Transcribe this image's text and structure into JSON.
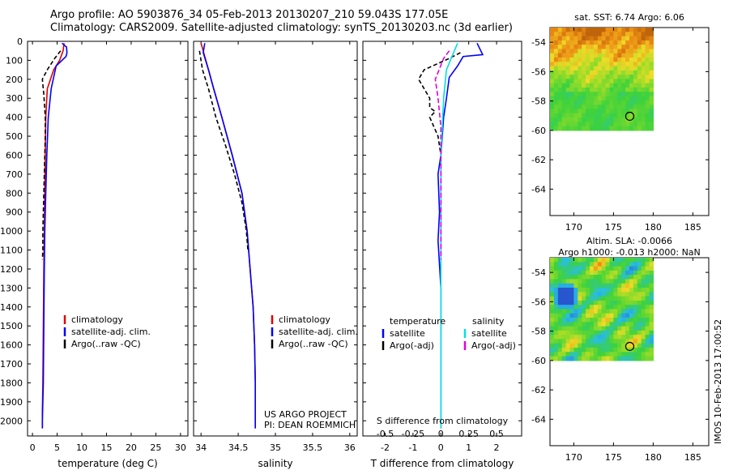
{
  "header": {
    "line1": "Argo profile: AO 5903876_34 05-Feb-2013 20130207_210 59.043S 177.05E",
    "line2": "Climatology: CARS2009. Satellite-adjusted climatology: synTS_20130203.nc (3d earlier)"
  },
  "footer_stamp": "IMOS 10-Feb-2013 17:00:52",
  "colors": {
    "climatology": "#e00000",
    "satellite": "#0000ff",
    "argo": "#000000",
    "sal_sat": "#00e0e0",
    "sal_argo": "#e000e0"
  },
  "depth_ticks": [
    0,
    100,
    200,
    300,
    400,
    500,
    600,
    700,
    800,
    900,
    1000,
    1100,
    1200,
    1300,
    1400,
    1500,
    1600,
    1700,
    1800,
    1900,
    2000
  ],
  "chart_data": [
    {
      "type": "line",
      "id": "temperature",
      "xlabel": "temperature (deg C)",
      "xticks": [
        0,
        5,
        10,
        15,
        20,
        25,
        30
      ],
      "xlim": [
        -1,
        31.5
      ],
      "ylim": [
        0,
        2080
      ],
      "legend": [
        "climatology",
        "satellite-adj. clim.",
        "Argo(..raw -QC)"
      ],
      "series": [
        {
          "name": "climatology",
          "color": "#e00000",
          "dash": "",
          "x": [
            6.4,
            6.2,
            5.5,
            4.3,
            3.0,
            2.7,
            2.6,
            2.5,
            2.4,
            2.3,
            2.2,
            2.1,
            2.0,
            2.0
          ],
          "y": [
            10,
            50,
            100,
            150,
            250,
            400,
            600,
            800,
            1000,
            1200,
            1500,
            1800,
            1950,
            2040
          ]
        },
        {
          "name": "satellite-adj. clim.",
          "color": "#0000ff",
          "dash": "",
          "x": [
            6.0,
            6.9,
            7.0,
            6.8,
            4.8,
            3.8,
            3.2,
            2.9,
            2.7,
            2.5,
            2.4,
            2.3,
            2.2,
            2.1,
            2.0,
            2.0
          ],
          "y": [
            10,
            30,
            60,
            80,
            130,
            250,
            400,
            600,
            800,
            1000,
            1200,
            1500,
            1800,
            1900,
            2000,
            2040
          ]
        },
        {
          "name": "Argo(..raw -QC)",
          "color": "#000000",
          "dash": "5,3",
          "x": [
            5.7,
            4.5,
            3.0,
            2.0,
            2.3,
            2.6,
            2.6,
            2.5,
            2.4,
            2.3,
            2.2,
            2.1,
            2.1,
            2.0
          ],
          "y": [
            50,
            90,
            150,
            200,
            280,
            400,
            500,
            600,
            700,
            800,
            900,
            1000,
            1100,
            1150
          ]
        }
      ]
    },
    {
      "type": "line",
      "id": "salinity",
      "xlabel": "salinity",
      "xticks": [
        34,
        34.5,
        35,
        35.5,
        36
      ],
      "xlim": [
        33.9,
        36.1
      ],
      "ylim": [
        0,
        2080
      ],
      "legend": [
        "climatology",
        "satellite-adj. clim.",
        "Argo(..raw -QC)"
      ],
      "annotation": [
        "US ARGO PROJECT",
        "PI: DEAN ROEMMICH"
      ],
      "series": [
        {
          "name": "climatology",
          "color": "#e00000",
          "dash": "",
          "x": [
            34.0,
            34.05,
            34.1,
            34.17,
            34.28,
            34.42,
            34.55,
            34.62,
            34.66,
            34.7,
            34.72,
            34.73,
            34.73
          ],
          "y": [
            10,
            80,
            150,
            250,
            400,
            600,
            800,
            1000,
            1200,
            1400,
            1600,
            1800,
            2040
          ]
        },
        {
          "name": "satellite-adj. clim.",
          "color": "#0000ff",
          "dash": "",
          "x": [
            34.05,
            34.03,
            34.1,
            34.17,
            34.28,
            34.42,
            34.55,
            34.62,
            34.66,
            34.7,
            34.72,
            34.73,
            34.73
          ],
          "y": [
            10,
            60,
            150,
            250,
            400,
            600,
            800,
            1000,
            1200,
            1400,
            1600,
            1800,
            2040
          ]
        },
        {
          "name": "Argo(..raw -QC)",
          "color": "#000000",
          "dash": "5,3",
          "x": [
            33.98,
            34.02,
            34.1,
            34.2,
            34.33,
            34.45,
            34.55,
            34.61,
            34.63
          ],
          "y": [
            50,
            150,
            250,
            400,
            550,
            700,
            850,
            1000,
            1100
          ]
        }
      ]
    },
    {
      "type": "line",
      "id": "difference",
      "xlabel": "T difference from climatology",
      "xlabel2": "S difference from climatology",
      "xticks": [
        -2,
        -1,
        0,
        1,
        2
      ],
      "xticks2": [
        -0.5,
        -0.25,
        0,
        0.25,
        0.5
      ],
      "xlim": [
        -2.8,
        2.9
      ],
      "ylim": [
        0,
        2080
      ],
      "legend_left_title": "temperature",
      "legend_left": [
        "satellite",
        "Argo(-adj)"
      ],
      "legend_right_title": "salinity",
      "legend_right": [
        "satellite",
        "Argo(-adj)"
      ],
      "series": [
        {
          "name": "T satellite",
          "color": "#0000ff",
          "dash": "",
          "x": [
            1.3,
            1.5,
            0.8,
            0.6,
            0.3,
            0.2,
            0.1,
            0.05,
            0,
            -0.1,
            -0.05,
            -0.1,
            0,
            0,
            0
          ],
          "y": [
            10,
            70,
            80,
            130,
            190,
            300,
            400,
            500,
            600,
            700,
            900,
            1050,
            1300,
            1700,
            2040
          ]
        },
        {
          "name": "T Argo(-adj)",
          "color": "#000000",
          "dash": "5,3",
          "x": [
            0.7,
            0.3,
            -0.6,
            -0.8,
            -0.4,
            -0.4,
            -0.2,
            -0.4,
            -0.1,
            0,
            0
          ],
          "y": [
            60,
            90,
            150,
            200,
            300,
            350,
            370,
            400,
            500,
            600,
            1150
          ]
        },
        {
          "name": "S satellite",
          "color": "#00e0e0",
          "dash": "",
          "x": [
            0.6,
            0.4,
            0.2,
            0.1,
            0.05,
            0,
            0,
            0,
            0
          ],
          "y": [
            10,
            80,
            150,
            300,
            450,
            600,
            1000,
            1600,
            2040
          ]
        },
        {
          "name": "S Argo(-adj)",
          "color": "#e000e0",
          "dash": "6,3",
          "x": [
            0.3,
            0.1,
            -0.2,
            -0.1,
            0,
            0,
            0
          ],
          "y": [
            50,
            90,
            200,
            300,
            450,
            700,
            1150
          ]
        }
      ]
    },
    {
      "type": "heatmap",
      "id": "sst-map",
      "title": "sat. SST: 6.74 Argo: 6.06",
      "xticks": [
        170,
        175,
        180,
        185
      ],
      "yticks": [
        -54,
        -56,
        -58,
        -60,
        -62,
        -64
      ],
      "xlim": [
        167,
        187
      ],
      "ylim": [
        -65.8,
        -53
      ],
      "data_extent": {
        "lon": [
          167,
          180
        ],
        "lat": [
          -60,
          -53
        ]
      },
      "marker": {
        "lon": 177.05,
        "lat": -59.04
      }
    },
    {
      "type": "heatmap",
      "id": "sla-map",
      "title": "Altim. SLA: -0.0066",
      "subtitle": "Argo h1000: -0.013 h2000: NaN",
      "xticks": [
        170,
        175,
        180,
        185
      ],
      "yticks": [
        -54,
        -56,
        -58,
        -60,
        -62,
        -64
      ],
      "xlim": [
        167,
        187
      ],
      "ylim": [
        -65.8,
        -53
      ],
      "data_extent": {
        "lon": [
          167,
          180
        ],
        "lat": [
          -60,
          -53
        ]
      },
      "marker": {
        "lon": 177.05,
        "lat": -59.04
      }
    }
  ]
}
